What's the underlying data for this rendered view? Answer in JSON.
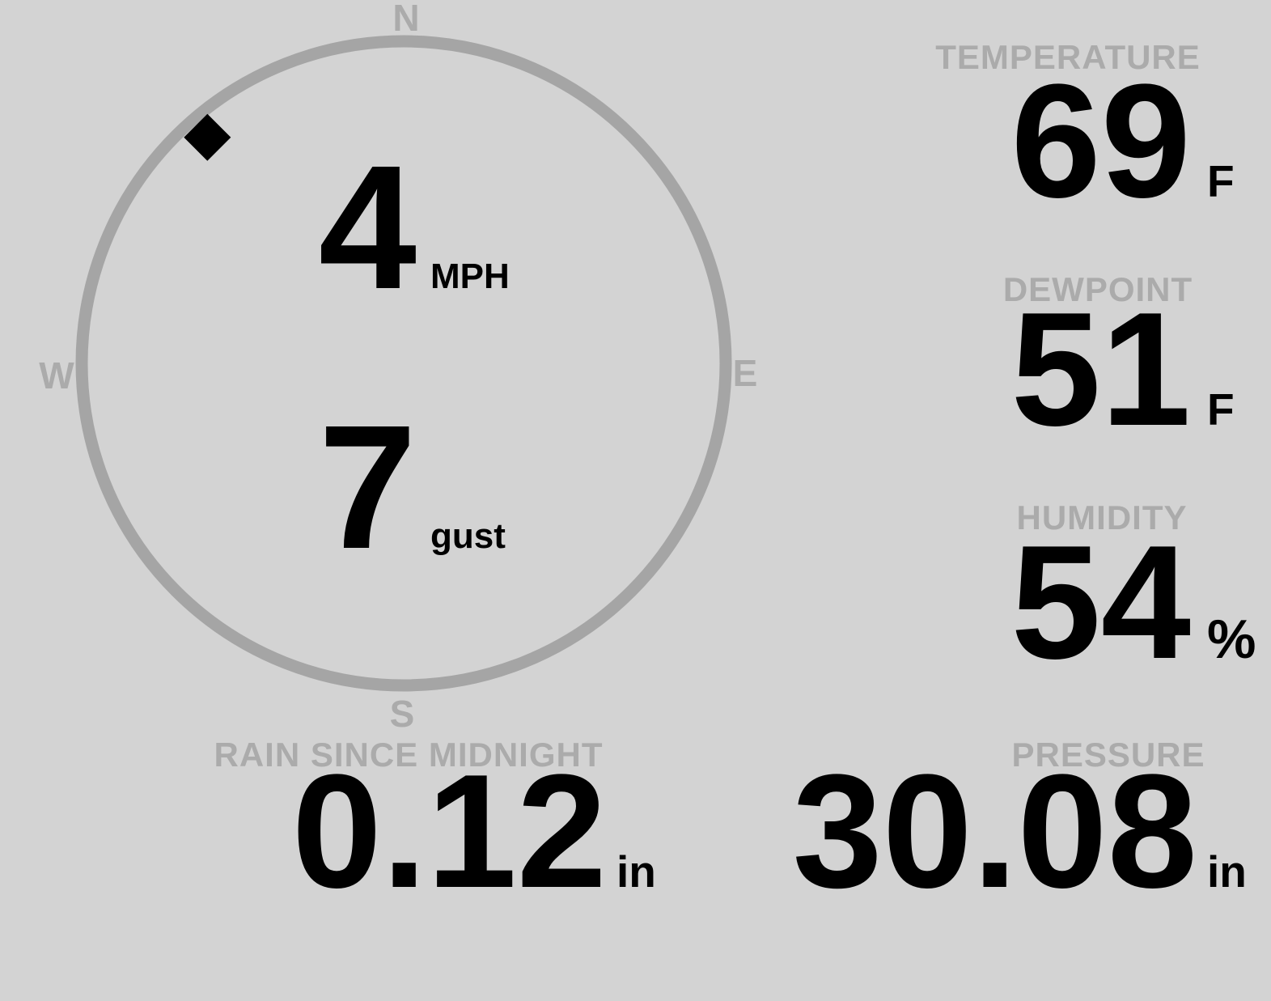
{
  "colors": {
    "background": "#d3d3d3",
    "ring_gray": "#a5a5a5",
    "label_gray": "#ababab",
    "value_black": "#000000"
  },
  "compass": {
    "north": "N",
    "east": "E",
    "south": "S",
    "west": "W",
    "wind_direction_deg": 319,
    "wind_speed": "4",
    "wind_speed_unit": "MPH",
    "wind_gust": "7",
    "wind_gust_unit": "gust"
  },
  "stats": {
    "temperature": {
      "label": "TEMPERATURE",
      "value": "69",
      "unit": "F"
    },
    "dewpoint": {
      "label": "DEWPOINT",
      "value": "51",
      "unit": "F"
    },
    "humidity": {
      "label": "HUMIDITY",
      "value": "54",
      "unit": "%"
    },
    "rain": {
      "label": "RAIN SINCE MIDNIGHT",
      "value": "0.12",
      "unit": "in"
    },
    "pressure": {
      "label": "PRESSURE",
      "value": "30.08",
      "unit": "in"
    }
  }
}
